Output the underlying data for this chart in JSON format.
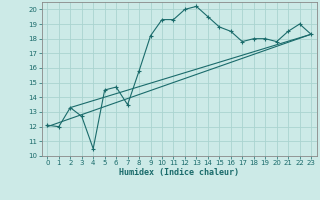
{
  "xlabel": "Humidex (Indice chaleur)",
  "bg_color": "#cceae7",
  "grid_color": "#aad4d0",
  "line_color": "#1a6b6b",
  "xlim": [
    -0.5,
    23.5
  ],
  "ylim": [
    10,
    20.5
  ],
  "yticks": [
    10,
    11,
    12,
    13,
    14,
    15,
    16,
    17,
    18,
    19,
    20
  ],
  "xticks": [
    0,
    1,
    2,
    3,
    4,
    5,
    6,
    7,
    8,
    9,
    10,
    11,
    12,
    13,
    14,
    15,
    16,
    17,
    18,
    19,
    20,
    21,
    22,
    23
  ],
  "line1_x": [
    0,
    1,
    2,
    3,
    4,
    5,
    6,
    7,
    8,
    9,
    10,
    11,
    12,
    13,
    14,
    15,
    16,
    17,
    18,
    19,
    20,
    21,
    22,
    23
  ],
  "line1_y": [
    12.1,
    12.0,
    13.3,
    12.7,
    10.5,
    14.5,
    14.7,
    13.5,
    15.8,
    18.2,
    19.3,
    19.3,
    20.0,
    20.2,
    19.5,
    18.8,
    18.5,
    17.8,
    18.0,
    18.0,
    17.8,
    18.5,
    19.0,
    18.3
  ],
  "line2_x": [
    0,
    23
  ],
  "line2_y": [
    12.0,
    18.3
  ],
  "line3_x": [
    2,
    23
  ],
  "line3_y": [
    13.3,
    18.3
  ]
}
